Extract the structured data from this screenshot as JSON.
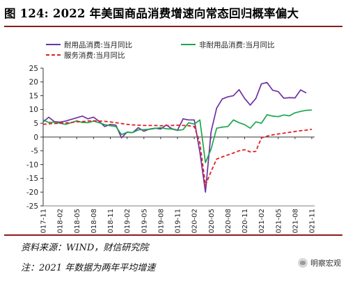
{
  "figure": {
    "title": "图 124: 2022 年美国商品消费增速向常态回归概率偏大",
    "source": "资料来源：WIND，财信研究院",
    "note": "注：2021 年数据为两年平均增速",
    "watermark": "明察宏观"
  },
  "chart_data": {
    "type": "line",
    "title": "图 124: 2022 年美国商品消费增速向常态回归概率偏大",
    "xlabel": "",
    "ylabel": "",
    "ylim": [
      -25,
      25
    ],
    "yticks": [
      25,
      20,
      15,
      10,
      5,
      0,
      -5,
      -10,
      -15,
      -20,
      -25
    ],
    "grid": false,
    "legend_position": "top",
    "x_tick_labels": [
      "2017-11",
      "2018-02",
      "2018-05",
      "2018-08",
      "2018-11",
      "2019-02",
      "2019-05",
      "2019-08",
      "2019-11",
      "2020-02",
      "2020-05",
      "2020-08",
      "2020-11",
      "2021-02",
      "2021-05",
      "2021-08",
      "2021-11"
    ],
    "x": [
      "2017-11",
      "2017-12",
      "2018-01",
      "2018-02",
      "2018-03",
      "2018-04",
      "2018-05",
      "2018-06",
      "2018-07",
      "2018-08",
      "2018-09",
      "2018-10",
      "2018-11",
      "2018-12",
      "2019-01",
      "2019-02",
      "2019-03",
      "2019-04",
      "2019-05",
      "2019-06",
      "2019-07",
      "2019-08",
      "2019-09",
      "2019-10",
      "2019-11",
      "2019-12",
      "2020-01",
      "2020-02",
      "2020-03",
      "2020-04",
      "2020-05",
      "2020-06",
      "2020-07",
      "2020-08",
      "2020-09",
      "2020-10",
      "2020-11",
      "2020-12",
      "2021-01",
      "2021-02",
      "2021-03",
      "2021-04",
      "2021-05",
      "2021-06",
      "2021-07",
      "2021-08",
      "2021-09",
      "2021-10",
      "2021-11"
    ],
    "series": [
      {
        "name": "耐用品消费:当月同比",
        "color": "#7030a0",
        "dash": "solid",
        "values": [
          5.5,
          7.2,
          5.6,
          5.4,
          5.8,
          6.4,
          7.0,
          7.6,
          6.6,
          7.2,
          5.7,
          3.8,
          4.6,
          4.3,
          -0.3,
          1.8,
          1.6,
          3.4,
          2.1,
          2.9,
          3.2,
          2.9,
          4.4,
          3.0,
          2.5,
          6.6,
          6.2,
          6.2,
          -5.5,
          -20.0,
          1.9,
          10.5,
          13.8,
          14.6,
          15.0,
          17.2,
          14.0,
          11.6,
          14.0,
          19.3,
          19.8,
          17.0,
          16.5,
          14.1,
          14.3,
          14.2,
          17.1,
          16.0,
          null
        ]
      },
      {
        "name": "非耐用品消费:当月同比",
        "color": "#1aa64b",
        "dash": "solid",
        "values": [
          6.2,
          5.3,
          5.4,
          5.0,
          4.6,
          5.2,
          5.9,
          5.3,
          5.2,
          5.8,
          5.2,
          4.5,
          4.1,
          3.8,
          0.9,
          1.7,
          1.6,
          2.6,
          2.7,
          2.8,
          3.1,
          3.4,
          3.0,
          2.9,
          2.4,
          2.7,
          5.2,
          4.7,
          6.2,
          -9.3,
          -4.4,
          3.2,
          3.6,
          3.8,
          6.2,
          5.2,
          4.5,
          3.2,
          5.5,
          5.0,
          8.1,
          7.6,
          7.4,
          8.0,
          7.7,
          8.8,
          9.3,
          9.7,
          9.8
        ]
      },
      {
        "name": "服务消费:当月同比",
        "color": "#e02020",
        "dash": "dashed",
        "values": [
          4.6,
          4.8,
          4.9,
          5.0,
          5.1,
          5.3,
          5.5,
          5.6,
          5.8,
          5.9,
          5.8,
          5.7,
          5.5,
          5.2,
          4.9,
          4.6,
          4.4,
          4.3,
          4.2,
          4.2,
          4.2,
          4.1,
          4.2,
          4.2,
          4.3,
          4.2,
          4.1,
          3.8,
          -2.1,
          -17.5,
          -12.5,
          -8.0,
          -7.2,
          -6.5,
          -5.8,
          -5.0,
          -4.6,
          -5.4,
          -5.2,
          -0.3,
          0.3,
          0.8,
          1.1,
          1.4,
          1.7,
          2.0,
          2.3,
          2.5,
          2.8
        ]
      }
    ]
  }
}
